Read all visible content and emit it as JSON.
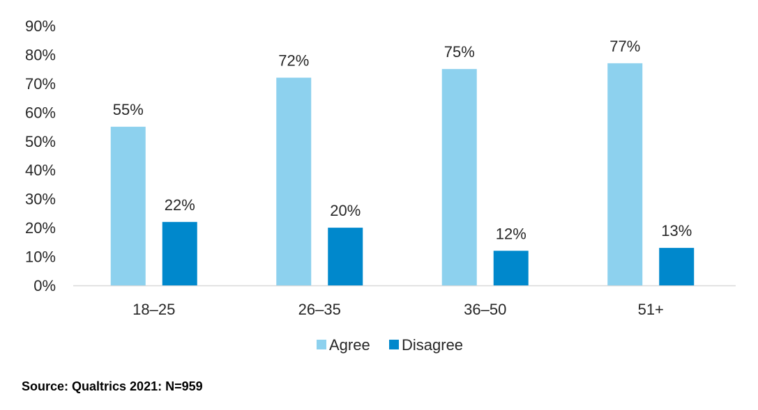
{
  "chart_data": {
    "type": "bar",
    "categories": [
      "18–25",
      "26–35",
      "36–50",
      "51+"
    ],
    "series": [
      {
        "name": "Agree",
        "values": [
          55,
          72,
          75,
          77
        ],
        "labels": [
          "55%",
          "72%",
          "75%",
          "77%"
        ],
        "color": "#8DD1EE"
      },
      {
        "name": "Disagree",
        "values": [
          22,
          20,
          12,
          13
        ],
        "labels": [
          "22%",
          "20%",
          "12%",
          "13%"
        ],
        "color": "#0088CC"
      }
    ],
    "y_ticks": [
      "0%",
      "10%",
      "20%",
      "30%",
      "40%",
      "50%",
      "60%",
      "70%",
      "80%",
      "90%"
    ],
    "ylim": [
      0,
      90
    ],
    "grid": false,
    "legend_position": "bottom"
  },
  "source_note": "Source: Qualtrics 2021: N=959"
}
